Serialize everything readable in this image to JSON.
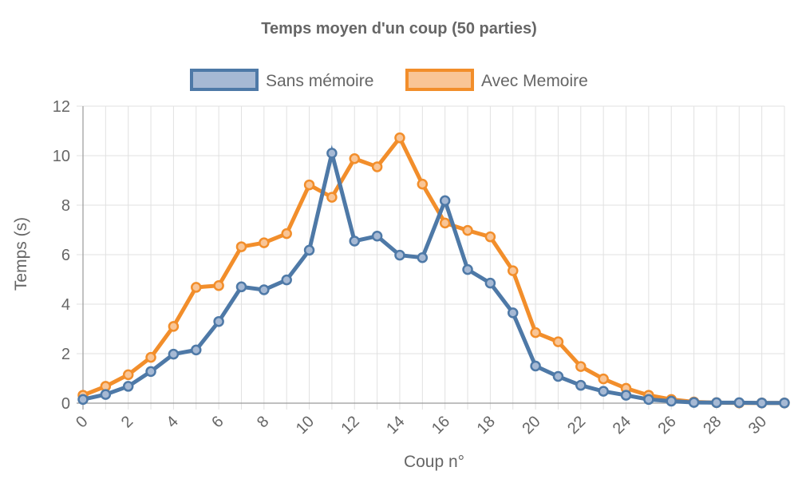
{
  "chart_data": {
    "type": "line",
    "title": "Temps moyen d'un coup (50 parties)",
    "xlabel": "Coup n°",
    "ylabel": "Temps (s)",
    "x": [
      0,
      1,
      2,
      3,
      4,
      5,
      6,
      7,
      8,
      9,
      10,
      11,
      12,
      13,
      14,
      15,
      16,
      17,
      18,
      19,
      20,
      21,
      22,
      23,
      24,
      25,
      26,
      27,
      28,
      29,
      30,
      31
    ],
    "x_ticks": [
      "0",
      "2",
      "4",
      "6",
      "8",
      "10",
      "12",
      "14",
      "16",
      "18",
      "20",
      "22",
      "24",
      "26",
      "28",
      "30"
    ],
    "y_ticks": [
      "0",
      "2",
      "4",
      "6",
      "8",
      "10",
      "12"
    ],
    "ylim": [
      0,
      12
    ],
    "grid": true,
    "legend": "top-center",
    "series": [
      {
        "name": "Sans mémoire",
        "color": "#4e79a7",
        "fill": "#a6b9d4",
        "values": [
          0.15,
          0.35,
          0.68,
          1.28,
          1.98,
          2.15,
          3.3,
          4.7,
          4.58,
          4.98,
          6.18,
          10.1,
          6.55,
          6.75,
          5.98,
          5.88,
          8.18,
          5.4,
          4.85,
          3.65,
          1.5,
          1.08,
          0.72,
          0.48,
          0.32,
          0.15,
          0.08,
          0.03,
          0.02,
          0.02,
          0.01,
          0.01
        ]
      },
      {
        "name": "Avec Memoire",
        "color": "#f28e2b",
        "fill": "#f9c596",
        "values": [
          0.32,
          0.68,
          1.15,
          1.85,
          3.1,
          4.68,
          4.75,
          6.32,
          6.48,
          6.85,
          8.82,
          8.32,
          9.88,
          9.55,
          10.72,
          8.85,
          7.28,
          6.98,
          6.72,
          5.35,
          2.85,
          2.48,
          1.48,
          0.98,
          0.6,
          0.32,
          0.15,
          0.05,
          0.02,
          0.01,
          0.01,
          0.01
        ]
      }
    ]
  }
}
